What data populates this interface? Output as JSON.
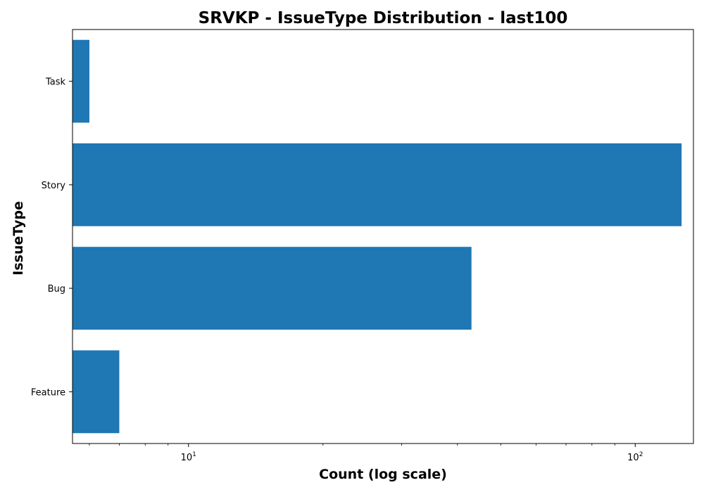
{
  "chart_data": {
    "type": "bar",
    "orientation": "horizontal",
    "title": "SRVKP - IssueType Distribution - last100",
    "xlabel": "Count (log scale)",
    "ylabel": "IssueType",
    "x_scale": "log",
    "xlim": [
      5.5,
      135
    ],
    "categories": [
      "Feature",
      "Bug",
      "Story",
      "Task"
    ],
    "values": [
      7,
      43,
      127,
      6
    ],
    "x_major_ticks": [
      {
        "value": 10,
        "base": "10",
        "exponent": "1"
      },
      {
        "value": 100,
        "base": "10",
        "exponent": "2"
      }
    ],
    "x_minor_ticks": [
      6,
      7,
      8,
      9,
      20,
      30,
      40,
      50,
      60,
      70,
      80,
      90
    ],
    "bar_color": "#1f77b4",
    "grid": false,
    "legend": null
  }
}
